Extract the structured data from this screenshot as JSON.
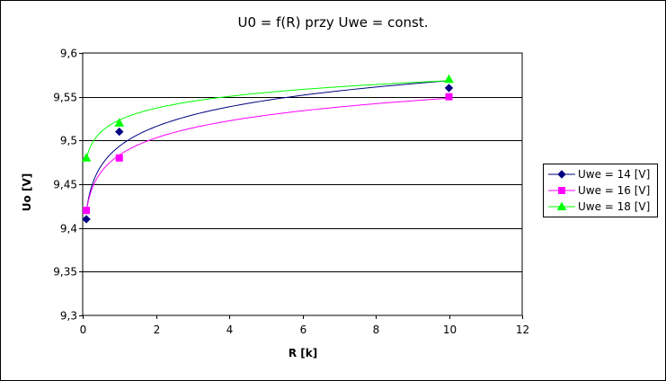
{
  "chart_data": {
    "type": "scatter",
    "title": "U0 = f(R) przy Uwe = const.",
    "xlabel": "R [k]",
    "ylabel": "Uo [V]",
    "xlim": [
      0,
      12
    ],
    "ylim": [
      9.3,
      9.6
    ],
    "xticks": [
      "0",
      "2",
      "4",
      "6",
      "8",
      "10",
      "12"
    ],
    "yticks": [
      "9,3",
      "9,35",
      "9,4",
      "9,45",
      "9,5",
      "9,55",
      "9,6"
    ],
    "grid": "horizontal",
    "legend_position": "right",
    "trendline": "logarithmic",
    "series": [
      {
        "name": "Uwe = 14 [V]",
        "color": "#000080",
        "marker": "diamond",
        "x": [
          0.1,
          1,
          10
        ],
        "y": [
          9.41,
          9.51,
          9.56
        ]
      },
      {
        "name": "Uwe = 16 [V]",
        "color": "#ff00ff",
        "marker": "square",
        "x": [
          0.1,
          1,
          10
        ],
        "y": [
          9.42,
          9.48,
          9.55
        ]
      },
      {
        "name": "Uwe = 18 [V]",
        "color": "#00ff00",
        "marker": "triangle",
        "x": [
          0.1,
          1,
          10
        ],
        "y": [
          9.48,
          9.52,
          9.57
        ]
      }
    ]
  }
}
